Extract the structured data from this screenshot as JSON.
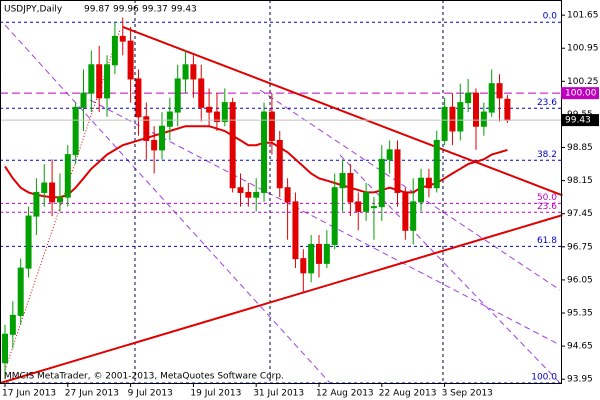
{
  "chart_data": {
    "type": "candlestick",
    "title": "USDJPY,Daily",
    "copyright": "MMCIS MetaTrader, © 2001-2013, MetaQuotes Software Corp.",
    "categories": [
      "17 Jun 2013",
      null,
      null,
      null,
      null,
      null,
      null,
      null,
      "27 Jun 2013",
      null,
      null,
      null,
      null,
      null,
      null,
      null,
      "9 Jul 2013",
      null,
      null,
      null,
      null,
      null,
      null,
      null,
      "19 Jul 2013",
      null,
      null,
      null,
      null,
      null,
      null,
      null,
      "31 Jul 2013",
      null,
      null,
      null,
      null,
      null,
      null,
      null,
      "12 Aug 2013",
      null,
      null,
      null,
      null,
      null,
      null,
      null,
      "22 Aug 2013",
      null,
      null,
      null,
      null,
      null,
      null,
      null,
      "3 Sep 2013",
      null,
      null,
      null,
      null,
      null,
      null,
      null,
      null
    ],
    "open": [
      94.3,
      94.9,
      95.3,
      96.3,
      97.4,
      97.9,
      98.1,
      97.7,
      97.8,
      98.7,
      99.7,
      100.0,
      100.6,
      99.9,
      100.6,
      101.2,
      101.1,
      100.3,
      99.5,
      99.0,
      98.8,
      99.3,
      99.6,
      100.3,
      100.6,
      100.3,
      99.7,
      99.6,
      99.4,
      99.8,
      98.0,
      97.9,
      97.8,
      97.9,
      99.6,
      99.0,
      98.0,
      97.7,
      96.5,
      96.2,
      96.8,
      96.4,
      96.8,
      98.0,
      98.3,
      97.7,
      97.5,
      97.6,
      97.6,
      98.6,
      98.8,
      97.9,
      97.1,
      97.7,
      98.2,
      98.0,
      99.0,
      99.7,
      99.2,
      99.8,
      100.0,
      99.3,
      99.6,
      100.2,
      99.87
    ],
    "high": [
      95.1,
      95.6,
      96.5,
      97.6,
      98.2,
      98.5,
      98.6,
      98.3,
      98.9,
      99.8,
      100.5,
      100.9,
      101.0,
      100.8,
      101.5,
      101.6,
      101.4,
      100.5,
      99.8,
      99.3,
      99.6,
      99.9,
      100.6,
      100.9,
      100.8,
      100.6,
      100.1,
      100.0,
      100.1,
      99.9,
      98.3,
      98.1,
      98.2,
      99.8,
      100.0,
      99.2,
      98.2,
      97.9,
      96.7,
      97.0,
      97.0,
      97.1,
      98.3,
      98.6,
      98.5,
      97.9,
      98.1,
      97.8,
      98.9,
      99.0,
      99.0,
      98.0,
      98.2,
      98.4,
      98.4,
      99.2,
      99.9,
      100.0,
      100.2,
      100.3,
      100.1,
      99.8,
      100.5,
      100.4,
      99.96
    ],
    "low": [
      93.95,
      94.6,
      95.1,
      96.1,
      97.0,
      97.6,
      97.4,
      97.5,
      97.6,
      98.5,
      99.2,
      99.6,
      99.6,
      99.5,
      100.4,
      100.8,
      99.8,
      99.1,
      98.6,
      98.3,
      98.6,
      99.0,
      99.3,
      100.0,
      99.9,
      99.4,
      99.3,
      99.2,
      99.3,
      97.9,
      97.6,
      97.6,
      97.5,
      97.7,
      98.7,
      97.8,
      96.9,
      96.3,
      95.8,
      96.0,
      96.1,
      96.3,
      96.7,
      97.5,
      97.4,
      97.1,
      97.3,
      96.9,
      97.3,
      98.3,
      97.6,
      96.9,
      96.8,
      97.5,
      97.8,
      97.9,
      98.9,
      98.9,
      99.0,
      99.6,
      98.8,
      99.1,
      99.5,
      99.4,
      99.37
    ],
    "close": [
      94.9,
      95.3,
      96.3,
      97.4,
      97.9,
      98.1,
      97.7,
      97.8,
      98.7,
      99.7,
      100.0,
      100.6,
      99.9,
      100.6,
      101.2,
      101.1,
      100.3,
      99.5,
      99.0,
      98.8,
      99.3,
      99.6,
      100.3,
      100.6,
      100.3,
      99.7,
      99.6,
      99.4,
      99.8,
      98.0,
      97.9,
      97.8,
      97.9,
      99.6,
      99.0,
      98.0,
      97.7,
      96.5,
      96.2,
      96.8,
      96.4,
      96.8,
      98.0,
      98.3,
      97.7,
      97.5,
      97.9,
      97.6,
      98.6,
      98.8,
      97.9,
      97.1,
      97.7,
      98.2,
      98.0,
      99.0,
      99.7,
      99.2,
      99.8,
      100.0,
      99.3,
      99.6,
      100.2,
      99.9,
      99.43
    ],
    "moving_average": [
      98.45,
      98.2,
      98.0,
      97.9,
      97.85,
      97.82,
      97.8,
      97.8,
      97.85,
      98.0,
      98.2,
      98.4,
      98.55,
      98.7,
      98.8,
      98.9,
      98.95,
      99.0,
      99.05,
      99.1,
      99.15,
      99.2,
      99.25,
      99.3,
      99.3,
      99.3,
      99.3,
      99.25,
      99.2,
      99.1,
      99.0,
      98.9,
      98.9,
      98.95,
      98.95,
      98.85,
      98.75,
      98.6,
      98.45,
      98.3,
      98.2,
      98.15,
      98.1,
      98.05,
      98.0,
      97.95,
      97.9,
      97.9,
      97.95,
      98.0,
      97.95,
      97.9,
      97.9,
      98.0,
      98.05,
      98.1,
      98.2,
      98.3,
      98.4,
      98.5,
      98.55,
      98.6,
      98.7,
      98.75,
      98.8
    ],
    "up_color": "#00a000",
    "down_color": "#e00000",
    "ma_color": "#e00000",
    "trendlines": [
      {
        "from": [
          15,
          101.4
        ],
        "to": [
          71,
          97.84
        ]
      },
      {
        "from": [
          -1,
          93.85
        ],
        "to": [
          71,
          97.42
        ]
      }
    ],
    "levels": [
      {
        "label": "0.0",
        "value": 101.5,
        "color": "#0000c8"
      },
      {
        "label": "23.6",
        "value": 99.68,
        "color": "#0000c8"
      },
      {
        "label": "38.2",
        "value": 98.58,
        "color": "#0000c8"
      },
      {
        "label": "50.0",
        "value": 97.67,
        "color": "#c000c0"
      },
      {
        "label": "23.6",
        "value": 97.48,
        "color": "#c000c0"
      },
      {
        "label": "61.8",
        "value": 96.76,
        "color": "#0000c8"
      },
      {
        "label": "100.0",
        "value": 93.87,
        "color": "#0000c8"
      }
    ],
    "hline": {
      "label": "100.00",
      "value": 100.0,
      "color": "#c000c0"
    },
    "ylim": [
      93.87,
      101.97
    ],
    "yticks": [
      101.65,
      100.95,
      100.25,
      99.55,
      98.85,
      98.15,
      97.45,
      96.75,
      96.05,
      95.35,
      94.65,
      93.95
    ]
  }
}
